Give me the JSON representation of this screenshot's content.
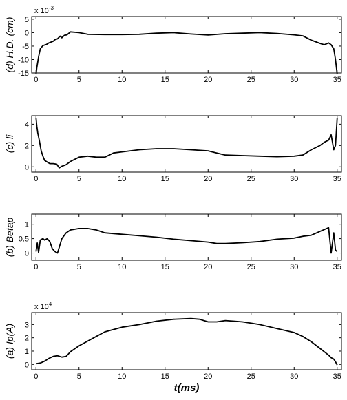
{
  "chart_data": [
    {
      "type": "line",
      "ylabel": "(d) H.D. (cm)",
      "multiplier": {
        "base": "x 10",
        "exp": "-3"
      },
      "xlim": [
        -0.5,
        35.5
      ],
      "ylim": [
        -15,
        6
      ],
      "xticks": [
        0,
        5,
        10,
        15,
        20,
        25,
        30,
        35
      ],
      "yticks": [
        5,
        0,
        -5,
        -10,
        -15
      ],
      "series": [
        {
          "x": [
            0,
            0.1,
            0.3,
            0.5,
            0.8,
            1.2,
            1.5,
            2.0,
            2.2,
            2.5,
            2.8,
            3.0,
            3.3,
            3.6,
            4.0,
            5,
            6,
            8,
            10,
            12,
            14,
            16,
            18,
            20,
            22,
            24,
            26,
            28,
            30,
            31,
            32,
            33,
            33.5,
            34,
            34.3,
            34.6,
            34.8,
            35.0
          ],
          "y": [
            -15.5,
            -13,
            -9,
            -6,
            -4.8,
            -4.4,
            -3.8,
            -3.2,
            -2.6,
            -2.3,
            -1.3,
            -1.9,
            -1.0,
            -0.8,
            0.3,
            0,
            -0.6,
            -0.7,
            -0.7,
            -0.6,
            -0.2,
            0,
            -0.5,
            -0.9,
            -0.4,
            -0.2,
            0,
            -0.3,
            -0.8,
            -1.2,
            -2.8,
            -4.0,
            -4.5,
            -3.8,
            -4.5,
            -6.0,
            -10,
            -15.5
          ]
        }
      ]
    },
    {
      "type": "line",
      "ylabel": "(c) li",
      "xlim": [
        -0.5,
        35.5
      ],
      "ylim": [
        -0.5,
        4.8
      ],
      "xticks": [
        0,
        5,
        10,
        15,
        20,
        25,
        30,
        35
      ],
      "yticks": [
        4,
        2,
        0
      ],
      "series": [
        {
          "x": [
            0,
            0.1,
            0.2,
            0.4,
            0.6,
            0.8,
            1.0,
            1.3,
            1.6,
            2.0,
            2.4,
            2.7,
            3.0,
            3.5,
            4.0,
            4.5,
            5,
            6,
            7,
            8,
            9,
            10,
            12,
            14,
            16,
            18,
            20,
            21,
            22,
            24,
            26,
            28,
            30,
            31,
            32,
            33,
            33.5,
            34,
            34.3,
            34.6,
            34.8,
            35.0
          ],
          "y": [
            4.6,
            3.8,
            3.2,
            2.4,
            1.5,
            1.0,
            0.6,
            0.45,
            0.3,
            0.3,
            0.25,
            -0.1,
            0.05,
            0.2,
            0.5,
            0.7,
            0.9,
            1.0,
            0.9,
            0.9,
            1.3,
            1.4,
            1.6,
            1.7,
            1.7,
            1.6,
            1.5,
            1.3,
            1.1,
            1.05,
            1.0,
            0.95,
            1.0,
            1.1,
            1.6,
            2.0,
            2.3,
            2.5,
            3.0,
            1.6,
            2.0,
            4.6
          ]
        }
      ]
    },
    {
      "type": "line",
      "ylabel": "(b) Betap",
      "xlim": [
        -0.5,
        35.5
      ],
      "ylim": [
        -0.25,
        1.35
      ],
      "xticks": [
        0,
        5,
        10,
        15,
        20,
        25,
        30,
        35
      ],
      "yticks": [
        1,
        0.5,
        0
      ],
      "series": [
        {
          "x": [
            0,
            0.15,
            0.3,
            0.5,
            0.8,
            1.0,
            1.3,
            1.6,
            1.9,
            2.2,
            2.5,
            2.8,
            3.0,
            3.5,
            4.0,
            5,
            6,
            7,
            8,
            10,
            12,
            14,
            16,
            18,
            20,
            21,
            22,
            24,
            26,
            28,
            30,
            31,
            32,
            33,
            34,
            34.3,
            34.6,
            34.8,
            35.0
          ],
          "y": [
            0.05,
            0.35,
            0.02,
            0.45,
            0.5,
            0.45,
            0.5,
            0.4,
            0.15,
            0.05,
            0.0,
            0.3,
            0.5,
            0.7,
            0.8,
            0.85,
            0.85,
            0.8,
            0.7,
            0.65,
            0.6,
            0.55,
            0.48,
            0.43,
            0.38,
            0.33,
            0.33,
            0.36,
            0.4,
            0.48,
            0.52,
            0.58,
            0.62,
            0.75,
            0.88,
            0.0,
            0.7,
            0.1,
            0.05
          ]
        }
      ]
    },
    {
      "type": "line",
      "ylabel": "(a) Ip(A)",
      "xlabel": "t(ms)",
      "multiplier": {
        "base": "x 10",
        "exp": "4"
      },
      "xlim": [
        -0.5,
        35.5
      ],
      "ylim": [
        -0.4,
        3.9
      ],
      "xticks": [
        0,
        5,
        10,
        15,
        20,
        25,
        30,
        35
      ],
      "yticks": [
        3,
        2,
        1,
        0
      ],
      "series": [
        {
          "x": [
            0,
            0.5,
            1.0,
            1.5,
            2.0,
            2.5,
            3.0,
            3.5,
            4.0,
            5,
            6,
            7,
            8,
            10,
            12,
            14,
            16,
            18,
            19,
            20,
            21,
            22,
            23,
            24,
            25,
            26,
            28,
            30,
            31,
            32,
            33,
            34,
            34.3,
            34.6,
            34.8,
            35.0
          ],
          "y": [
            0.05,
            0.1,
            0.25,
            0.45,
            0.6,
            0.65,
            0.55,
            0.6,
            0.95,
            1.4,
            1.75,
            2.1,
            2.45,
            2.8,
            3.0,
            3.25,
            3.4,
            3.45,
            3.4,
            3.2,
            3.2,
            3.3,
            3.25,
            3.2,
            3.1,
            3.0,
            2.7,
            2.4,
            2.1,
            1.7,
            1.2,
            0.7,
            0.5,
            0.4,
            0.2,
            -0.05
          ]
        }
      ]
    }
  ]
}
